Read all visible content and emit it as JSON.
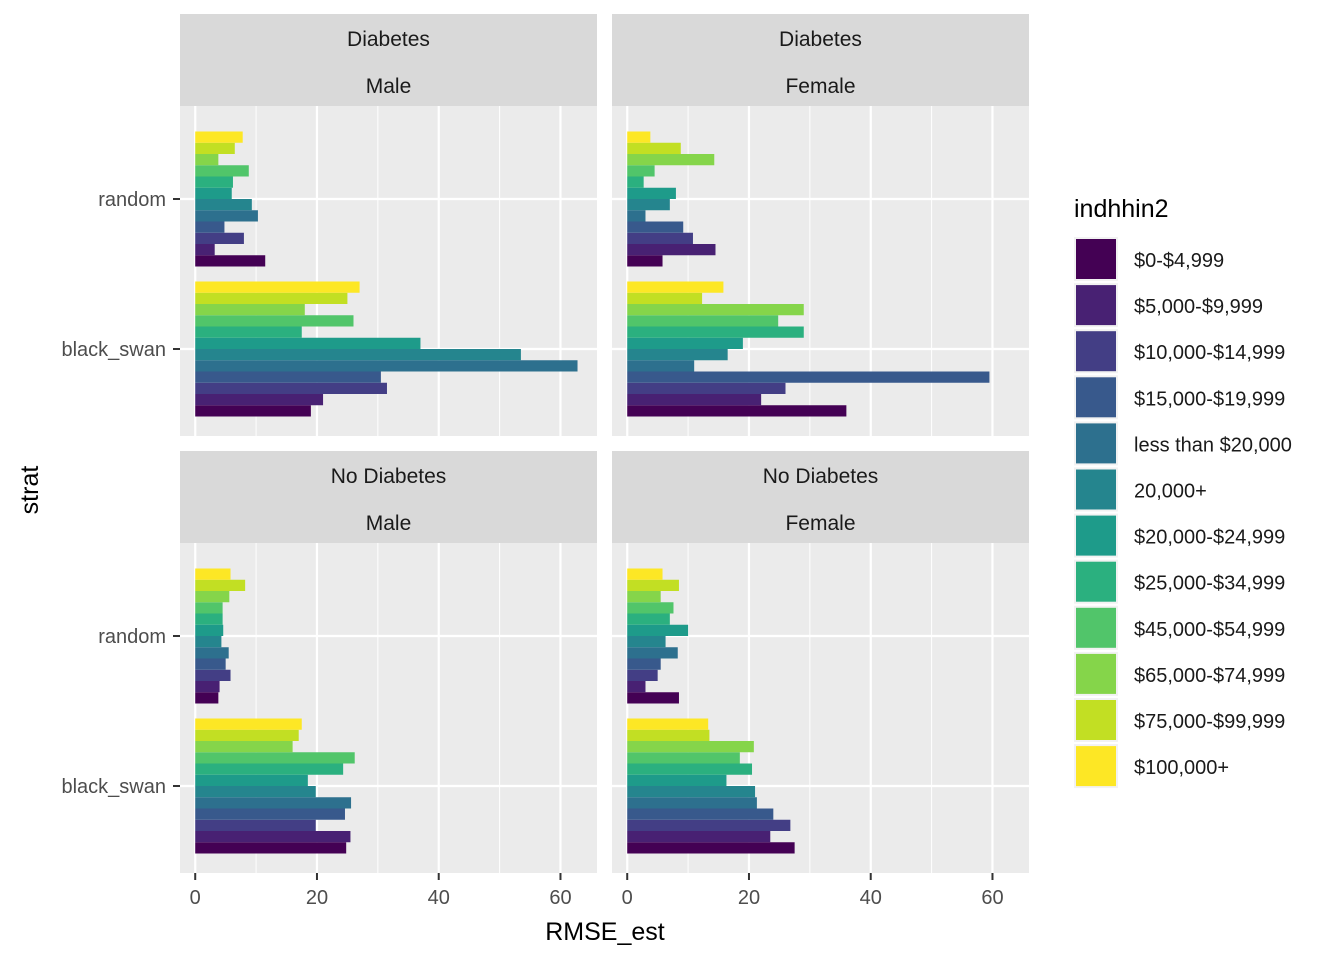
{
  "chart_data": {
    "type": "bar",
    "orientation": "horizontal",
    "xlabel": "RMSE_est",
    "ylabel": "strat",
    "xlim": [
      -2.5,
      66
    ],
    "xticks": [
      0,
      20,
      40,
      60
    ],
    "xtick_labels": [
      "0",
      "20",
      "40",
      "60"
    ],
    "categories": [
      "random",
      "black_swan"
    ],
    "legend": {
      "title": "indhhin2",
      "position": "right",
      "items": [
        {
          "label": "$0-$4,999",
          "color": "#440154"
        },
        {
          "label": "$5,000-$9,999",
          "color": "#482173"
        },
        {
          "label": "$10,000-$14,999",
          "color": "#433E85"
        },
        {
          "label": "$15,000-$19,999",
          "color": "#38598C"
        },
        {
          "label": "less than $20,000",
          "color": "#2D708E"
        },
        {
          "label": "20,000+",
          "color": "#25858E"
        },
        {
          "label": "$20,000-$24,999",
          "color": "#1E9B8A"
        },
        {
          "label": "$25,000-$34,999",
          "color": "#2BB07F"
        },
        {
          "label": "$45,000-$54,999",
          "color": "#51C56A"
        },
        {
          "label": "$65,000-$74,999",
          "color": "#85D54A"
        },
        {
          "label": "$75,000-$99,999",
          "color": "#C2DF23"
        },
        {
          "label": "$100,000+",
          "color": "#FDE725"
        }
      ]
    },
    "panels": [
      {
        "strip_top": "Diabetes",
        "strip_bottom": "Male",
        "series_values": {
          "random": [
            11.5,
            3.2,
            8.0,
            4.8,
            10.3,
            9.3,
            6.0,
            6.2,
            8.8,
            3.8,
            6.5,
            7.8
          ],
          "black_swan": [
            19.0,
            21.0,
            31.5,
            30.5,
            62.8,
            53.5,
            37.0,
            17.5,
            26.0,
            18.0,
            25.0,
            27.0
          ]
        }
      },
      {
        "strip_top": "Diabetes",
        "strip_bottom": "Female",
        "series_values": {
          "random": [
            5.8,
            14.5,
            10.8,
            9.2,
            3.0,
            7.0,
            8.0,
            2.7,
            4.5,
            14.3,
            8.8,
            3.8
          ],
          "black_swan": [
            36.0,
            22.0,
            26.0,
            59.5,
            11.0,
            16.5,
            19.0,
            29.0,
            24.8,
            29.0,
            12.3,
            15.8
          ]
        }
      },
      {
        "strip_top": "No Diabetes",
        "strip_bottom": "Male",
        "series_values": {
          "random": [
            3.8,
            4.0,
            5.8,
            5.0,
            5.5,
            4.3,
            4.6,
            4.5,
            4.5,
            5.6,
            8.2,
            5.8
          ],
          "black_swan": [
            24.8,
            25.5,
            19.8,
            24.6,
            25.6,
            19.8,
            18.5,
            24.3,
            26.2,
            16.0,
            17.0,
            17.5
          ]
        }
      },
      {
        "strip_top": "No Diabetes",
        "strip_bottom": "Female",
        "series_values": {
          "random": [
            8.5,
            3.0,
            5.0,
            5.5,
            8.3,
            6.3,
            10.0,
            7.0,
            7.6,
            5.5,
            8.5,
            5.8
          ],
          "black_swan": [
            27.5,
            23.5,
            26.8,
            24.0,
            21.3,
            21.0,
            16.3,
            20.5,
            18.5,
            20.8,
            13.5,
            13.3
          ]
        }
      }
    ]
  }
}
